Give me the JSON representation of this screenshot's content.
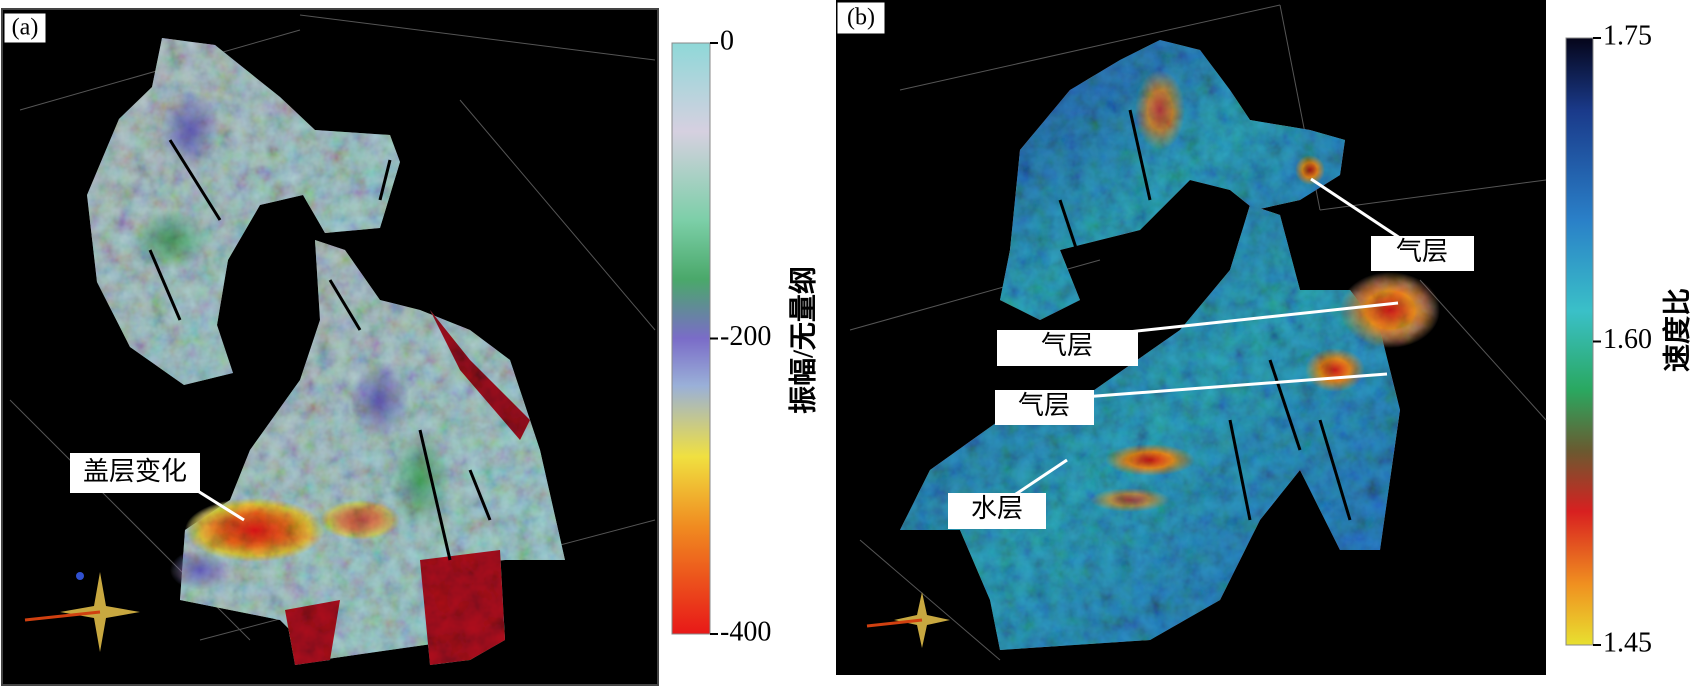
{
  "panels": [
    {
      "label": "(a)",
      "annotations": [
        "盖层变化"
      ],
      "colorbar": {
        "title": "振幅/无量纲",
        "range": [
          -400,
          0
        ],
        "ticks": [
          0,
          -200,
          -400
        ]
      }
    },
    {
      "label": "(b)",
      "annotations": [
        "气层",
        "气层",
        "气层",
        "水层"
      ],
      "colorbar": {
        "title": "速度比",
        "range": [
          1.45,
          1.75
        ],
        "ticks": [
          1.75,
          {
            "value": 1.6,
            "label": "1.60"
          },
          1.45
        ]
      }
    }
  ]
}
